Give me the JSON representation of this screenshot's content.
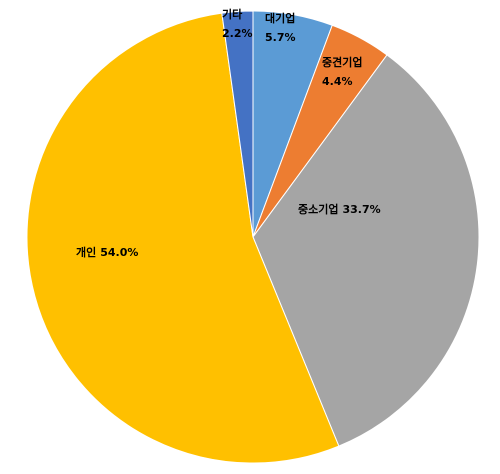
{
  "chart_data": {
    "type": "pie",
    "categories": [
      "대기업",
      "중견기업",
      "중소기업",
      "개인",
      "기타"
    ],
    "values": [
      5.7,
      4.4,
      33.7,
      54.0,
      2.2
    ],
    "value_labels": [
      "5.7%",
      "4.4%",
      "33.7%",
      "54.0%",
      "2.2%"
    ],
    "colors": [
      "#5b9bd5",
      "#ed7d31",
      "#a5a5a5",
      "#ffc000",
      "#4472c4"
    ]
  }
}
